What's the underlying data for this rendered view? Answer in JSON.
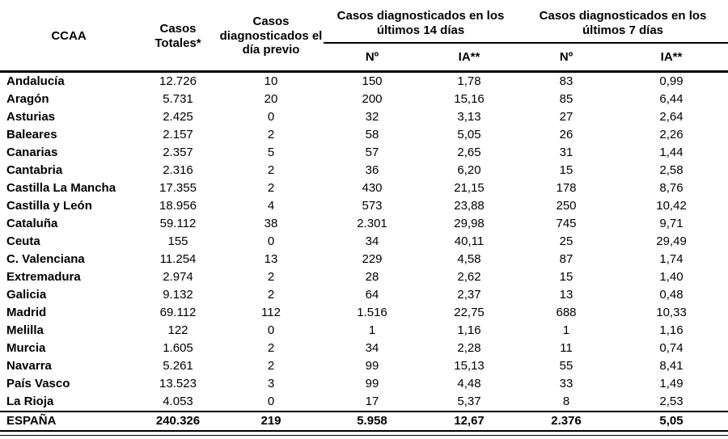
{
  "colors": {
    "text": "#000000",
    "rule": "#000000",
    "background": "#ffffff"
  },
  "table": {
    "headers": {
      "ccaa": "CCAA",
      "casos_totales": "Casos Totales*",
      "dia_previo": "Casos diagnosticados el día previo",
      "group_14": "Casos diagnosticados en los últimos 14 días",
      "group_7": "Casos diagnosticados en los últimos 7 días",
      "num": "Nº",
      "ia": "IA**"
    },
    "rows": [
      {
        "ccaa": "Andalucía",
        "totales": "12.726",
        "previo": "10",
        "n14": "150",
        "ia14": "1,78",
        "n7": "83",
        "ia7": "0,99"
      },
      {
        "ccaa": "Aragón",
        "totales": "5.731",
        "previo": "20",
        "n14": "200",
        "ia14": "15,16",
        "n7": "85",
        "ia7": "6,44"
      },
      {
        "ccaa": "Asturias",
        "totales": "2.425",
        "previo": "0",
        "n14": "32",
        "ia14": "3,13",
        "n7": "27",
        "ia7": "2,64"
      },
      {
        "ccaa": "Baleares",
        "totales": "2.157",
        "previo": "2",
        "n14": "58",
        "ia14": "5,05",
        "n7": "26",
        "ia7": "2,26"
      },
      {
        "ccaa": "Canarias",
        "totales": "2.357",
        "previo": "5",
        "n14": "57",
        "ia14": "2,65",
        "n7": "31",
        "ia7": "1,44"
      },
      {
        "ccaa": "Cantabria",
        "totales": "2.316",
        "previo": "2",
        "n14": "36",
        "ia14": "6,20",
        "n7": "15",
        "ia7": "2,58"
      },
      {
        "ccaa": "Castilla La Mancha",
        "totales": "17.355",
        "previo": "2",
        "n14": "430",
        "ia14": "21,15",
        "n7": "178",
        "ia7": "8,76"
      },
      {
        "ccaa": "Castilla y León",
        "totales": "18.956",
        "previo": "4",
        "n14": "573",
        "ia14": "23,88",
        "n7": "250",
        "ia7": "10,42"
      },
      {
        "ccaa": "Cataluña",
        "totales": "59.112",
        "previo": "38",
        "n14": "2.301",
        "ia14": "29,98",
        "n7": "745",
        "ia7": "9,71"
      },
      {
        "ccaa": "Ceuta",
        "totales": "155",
        "previo": "0",
        "n14": "34",
        "ia14": "40,11",
        "n7": "25",
        "ia7": "29,49"
      },
      {
        "ccaa": "C. Valenciana",
        "totales": "11.254",
        "previo": "13",
        "n14": "229",
        "ia14": "4,58",
        "n7": "87",
        "ia7": "1,74"
      },
      {
        "ccaa": "Extremadura",
        "totales": "2.974",
        "previo": "2",
        "n14": "28",
        "ia14": "2,62",
        "n7": "15",
        "ia7": "1,40"
      },
      {
        "ccaa": "Galicia",
        "totales": "9.132",
        "previo": "2",
        "n14": "64",
        "ia14": "2,37",
        "n7": "13",
        "ia7": "0,48"
      },
      {
        "ccaa": "Madrid",
        "totales": "69.112",
        "previo": "112",
        "n14": "1.516",
        "ia14": "22,75",
        "n7": "688",
        "ia7": "10,33"
      },
      {
        "ccaa": "Melilla",
        "totales": "122",
        "previo": "0",
        "n14": "1",
        "ia14": "1,16",
        "n7": "1",
        "ia7": "1,16"
      },
      {
        "ccaa": "Murcia",
        "totales": "1.605",
        "previo": "2",
        "n14": "34",
        "ia14": "2,28",
        "n7": "11",
        "ia7": "0,74"
      },
      {
        "ccaa": "Navarra",
        "totales": "5.261",
        "previo": "2",
        "n14": "99",
        "ia14": "15,13",
        "n7": "55",
        "ia7": "8,41"
      },
      {
        "ccaa": "País Vasco",
        "totales": "13.523",
        "previo": "3",
        "n14": "99",
        "ia14": "4,48",
        "n7": "33",
        "ia7": "1,49"
      },
      {
        "ccaa": "La Rioja",
        "totales": "4.053",
        "previo": "0",
        "n14": "17",
        "ia14": "5,37",
        "n7": "8",
        "ia7": "2,53"
      }
    ],
    "total_row": {
      "ccaa": "ESPAÑA",
      "totales": "240.326",
      "previo": "219",
      "n14": "5.958",
      "ia14": "12,67",
      "n7": "2.376",
      "ia7": "5,05"
    }
  }
}
